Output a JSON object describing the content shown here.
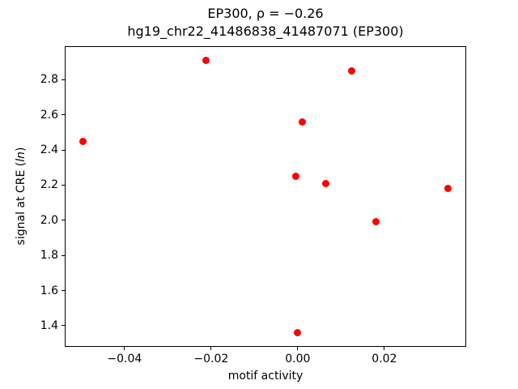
{
  "chart_data": {
    "type": "scatter",
    "title_line1": "EP300, ρ = −0.26",
    "title_line2": "hg19_chr22_41486838_41487071 (EP300)",
    "xlabel": "motif activity",
    "ylabel_prefix": "signal at CRE (",
    "ylabel_italic": "ln",
    "ylabel_suffix": ")",
    "marker_color": "#ff0000",
    "grid": false,
    "legend": "none",
    "xlim": [
      -0.0538,
      0.0389
    ],
    "ylim": [
      1.28,
      2.99
    ],
    "xticks": [
      -0.04,
      -0.02,
      0.0,
      0.02
    ],
    "xtick_labels": [
      "−0.04",
      "−0.02",
      "0.00",
      "0.02"
    ],
    "yticks": [
      1.4,
      1.6,
      1.8,
      2.0,
      2.2,
      2.4,
      2.6,
      2.8
    ],
    "ytick_labels": [
      "1.4",
      "1.6",
      "1.8",
      "2.0",
      "2.2",
      "2.4",
      "2.6",
      "2.8"
    ],
    "points": [
      {
        "x": -0.0496,
        "y": 2.45
      },
      {
        "x": -0.0212,
        "y": 2.91
      },
      {
        "x": 0.001,
        "y": 2.56
      },
      {
        "x": -0.0004,
        "y": 2.25
      },
      {
        "x": 0.0065,
        "y": 2.21
      },
      {
        "x": 0.0124,
        "y": 2.85
      },
      {
        "x": 0.0181,
        "y": 1.99
      },
      {
        "x": 0.0347,
        "y": 2.18
      },
      {
        "x": 0.0,
        "y": 1.36
      }
    ]
  }
}
